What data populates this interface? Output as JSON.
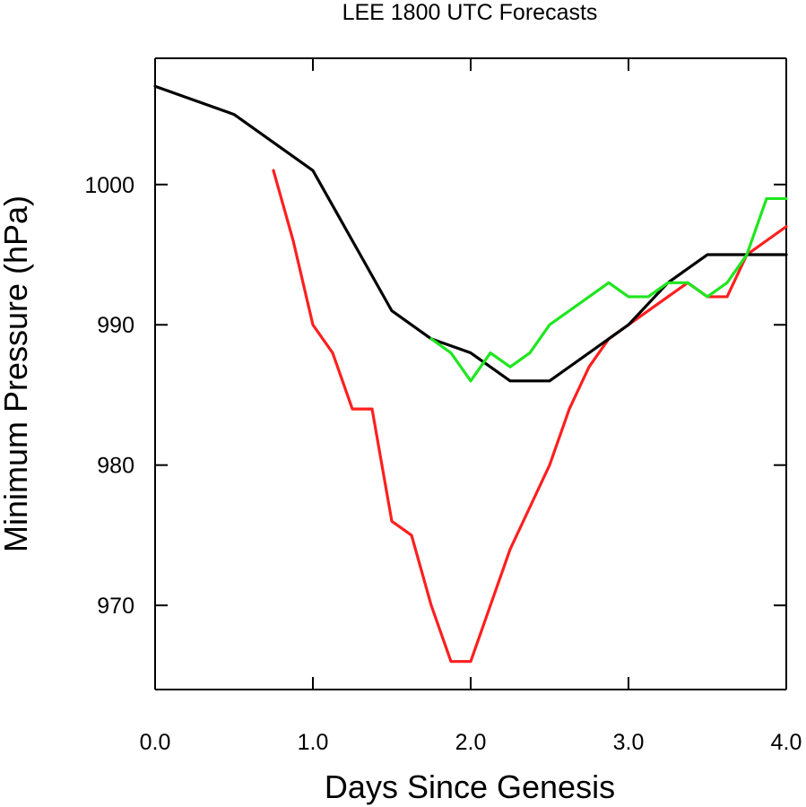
{
  "chart_data": {
    "type": "line",
    "title": "LEE 1800 UTC Forecasts",
    "xlabel": "Days Since Genesis",
    "ylabel": "Minimum Pressure (hPa)",
    "xlim": [
      0.0,
      4.0
    ],
    "ylim": [
      964,
      1009
    ],
    "xticks": [
      0.0,
      1.0,
      2.0,
      3.0,
      4.0
    ],
    "xtick_labels": [
      "0.0",
      "1.0",
      "2.0",
      "3.0",
      "4.0"
    ],
    "yticks": [
      970,
      980,
      990,
      1000
    ],
    "ytick_labels": [
      "970",
      "980",
      "990",
      "1000"
    ],
    "grid": false,
    "legend": "none",
    "series": [
      {
        "color": "#000000",
        "points": [
          [
            0.0,
            1007
          ],
          [
            0.5,
            1005
          ],
          [
            1.0,
            1001
          ],
          [
            1.25,
            996
          ],
          [
            1.5,
            991
          ],
          [
            1.75,
            989
          ],
          [
            2.0,
            988
          ],
          [
            2.25,
            986
          ],
          [
            2.5,
            986
          ],
          [
            3.0,
            990
          ],
          [
            3.25,
            993
          ],
          [
            3.5,
            995
          ],
          [
            4.0,
            995
          ]
        ]
      },
      {
        "color": "#ff1f1f",
        "points": [
          [
            0.75,
            1001
          ],
          [
            0.875,
            996
          ],
          [
            1.0,
            990
          ],
          [
            1.125,
            988
          ],
          [
            1.25,
            984
          ],
          [
            1.375,
            984
          ],
          [
            1.5,
            976
          ],
          [
            1.625,
            975
          ],
          [
            1.75,
            970
          ],
          [
            1.875,
            966
          ],
          [
            2.0,
            966
          ],
          [
            2.125,
            970
          ],
          [
            2.25,
            974
          ],
          [
            2.375,
            977
          ],
          [
            2.5,
            980
          ],
          [
            2.625,
            984
          ],
          [
            2.75,
            987
          ],
          [
            2.875,
            989
          ],
          [
            3.0,
            990
          ],
          [
            3.125,
            991
          ],
          [
            3.25,
            992
          ],
          [
            3.375,
            993
          ],
          [
            3.5,
            992
          ],
          [
            3.625,
            992
          ],
          [
            3.75,
            995
          ],
          [
            3.875,
            996
          ],
          [
            4.0,
            997
          ]
        ]
      },
      {
        "color": "#1fe61f",
        "points": [
          [
            1.75,
            989
          ],
          [
            1.875,
            988
          ],
          [
            2.0,
            986
          ],
          [
            2.125,
            988
          ],
          [
            2.25,
            987
          ],
          [
            2.375,
            988
          ],
          [
            2.5,
            990
          ],
          [
            2.625,
            991
          ],
          [
            2.75,
            992
          ],
          [
            2.875,
            993
          ],
          [
            3.0,
            992
          ],
          [
            3.125,
            992
          ],
          [
            3.25,
            993
          ],
          [
            3.375,
            993
          ],
          [
            3.5,
            992
          ],
          [
            3.625,
            993
          ],
          [
            3.75,
            995
          ],
          [
            3.875,
            999
          ],
          [
            4.0,
            999
          ]
        ]
      }
    ]
  }
}
